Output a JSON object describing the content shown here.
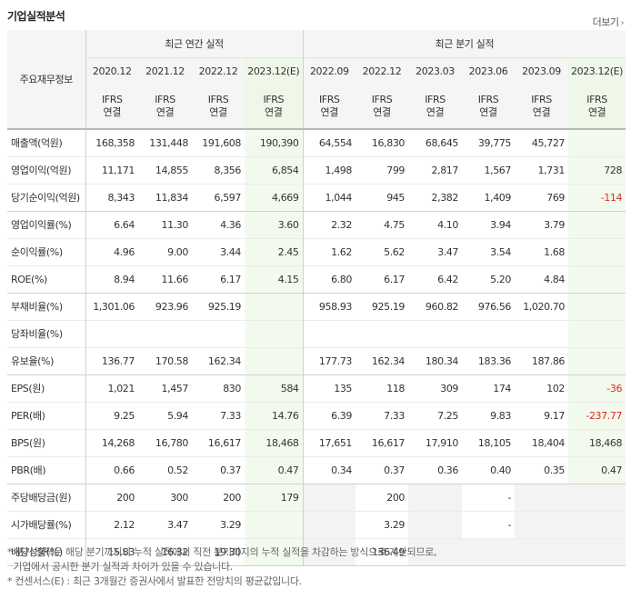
{
  "header": {
    "title": "기업실적분석",
    "more_label": "더보기"
  },
  "table": {
    "row_header": "주요재무정보",
    "annual_group": "최근 연간 실적",
    "quarter_group": "최근 분기 실적",
    "years": [
      "2020.12",
      "2021.12",
      "2022.12",
      "2023.12(E)",
      "2022.09",
      "2022.12",
      "2023.03",
      "2023.06",
      "2023.09",
      "2023.12(E)"
    ],
    "ifrs_top": "IFRS",
    "ifrs_bottom": "연결",
    "rows": [
      {
        "label": "매출액(억원)",
        "values": [
          "168,358",
          "131,448",
          "191,608",
          "190,390",
          "64,554",
          "16,830",
          "68,645",
          "39,775",
          "45,727",
          ""
        ]
      },
      {
        "label": "영업이익(억원)",
        "values": [
          "11,171",
          "14,855",
          "8,356",
          "6,854",
          "1,498",
          "799",
          "2,817",
          "1,567",
          "1,731",
          "728"
        ]
      },
      {
        "label": "당기순이익(억원)",
        "values": [
          "8,343",
          "11,834",
          "6,597",
          "4,669",
          "1,044",
          "945",
          "2,382",
          "1,409",
          "769",
          "-114"
        ]
      },
      {
        "label": "영업이익률(%)",
        "values": [
          "6.64",
          "11.30",
          "4.36",
          "3.60",
          "2.32",
          "4.75",
          "4.10",
          "3.94",
          "3.79",
          ""
        ]
      },
      {
        "label": "순이익률(%)",
        "values": [
          "4.96",
          "9.00",
          "3.44",
          "2.45",
          "1.62",
          "5.62",
          "3.47",
          "3.54",
          "1.68",
          ""
        ]
      },
      {
        "label": "ROE(%)",
        "values": [
          "8.94",
          "11.66",
          "6.17",
          "4.15",
          "6.80",
          "6.17",
          "6.42",
          "5.20",
          "4.84",
          ""
        ]
      },
      {
        "label": "부채비율(%)",
        "values": [
          "1,301.06",
          "923.96",
          "925.19",
          "",
          "958.93",
          "925.19",
          "960.82",
          "976.56",
          "1,020.70",
          ""
        ]
      },
      {
        "label": "당좌비율(%)",
        "values": [
          "",
          "",
          "",
          "",
          "",
          "",
          "",
          "",
          "",
          ""
        ]
      },
      {
        "label": "유보율(%)",
        "values": [
          "136.77",
          "170.58",
          "162.34",
          "",
          "177.73",
          "162.34",
          "180.34",
          "183.36",
          "187.86",
          ""
        ]
      },
      {
        "label": "EPS(원)",
        "values": [
          "1,021",
          "1,457",
          "830",
          "584",
          "135",
          "118",
          "309",
          "174",
          "102",
          "-36"
        ]
      },
      {
        "label": "PER(배)",
        "values": [
          "9.25",
          "5.94",
          "7.33",
          "14.76",
          "6.39",
          "7.33",
          "7.25",
          "9.83",
          "9.17",
          "-237.77"
        ]
      },
      {
        "label": "BPS(원)",
        "values": [
          "14,268",
          "16,780",
          "16,617",
          "18,468",
          "17,651",
          "16,617",
          "17,910",
          "18,105",
          "18,404",
          "18,468"
        ]
      },
      {
        "label": "PBR(배)",
        "values": [
          "0.66",
          "0.52",
          "0.37",
          "0.47",
          "0.34",
          "0.37",
          "0.36",
          "0.40",
          "0.35",
          "0.47"
        ]
      },
      {
        "label": "주당배당금(원)",
        "values": [
          "200",
          "300",
          "200",
          "179",
          "",
          "200",
          "",
          "-",
          "",
          ""
        ]
      },
      {
        "label": "시가배당률(%)",
        "values": [
          "2.12",
          "3.47",
          "3.29",
          "",
          "",
          "3.29",
          "",
          "-",
          "",
          ""
        ]
      },
      {
        "label": "배당성향(%)",
        "values": [
          "15.83",
          "16.32",
          "19.30",
          "",
          "",
          "136.49",
          "",
          "",
          "",
          ""
        ]
      }
    ]
  },
  "notes": [
    "* 분기 실적은 해당 분기까지의 누적 실적에서 직전 분기까지의 누적 실적을 차감하는 방식으로 계산되므로,",
    "  기업에서 공시한 분기 실적과 차이가 있을 수 있습니다.",
    "* 컨센서스(E) : 최근 3개월간 증권사에서 발표한 전망치의 평균값입니다."
  ],
  "colors": {
    "ifrs": "#e8751a",
    "negative": "#d92d20",
    "estimate_bg": "#f2faee"
  }
}
